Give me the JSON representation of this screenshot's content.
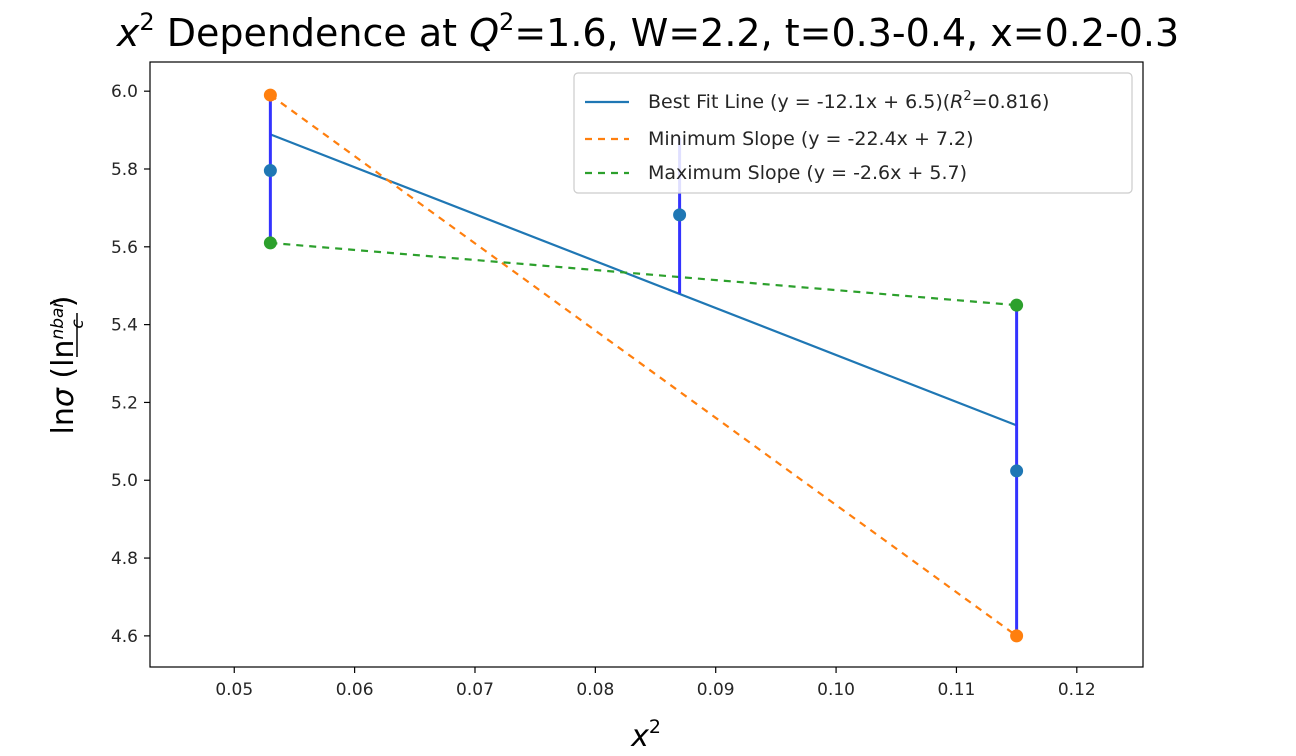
{
  "chart_data": {
    "type": "line",
    "title": {
      "lead_math": "x",
      "lead_sup": "2",
      "middle": " Dependence at ",
      "q_math": "Q",
      "q_sup": "2",
      "tail": "=1.6, W=2.2, t=0.3-0.4, x=0.2-0.3"
    },
    "xlabel": {
      "math": "x",
      "sup": "2"
    },
    "ylabel": {
      "lead": "ln",
      "sigma": "σ",
      "paren_open": " (ln",
      "numerator": "nbar",
      "denominator": "c",
      "paren_close": ")"
    },
    "xlim": [
      0.043,
      0.1255
    ],
    "ylim": [
      4.52,
      6.075
    ],
    "xticks": [
      0.05,
      0.06,
      0.07,
      0.08,
      0.09,
      0.1,
      0.11,
      0.12
    ],
    "xtick_labels": [
      "0.05",
      "0.06",
      "0.07",
      "0.08",
      "0.09",
      "0.10",
      "0.11",
      "0.12"
    ],
    "yticks": [
      4.6,
      4.8,
      5.0,
      5.2,
      5.4,
      5.6,
      5.8,
      6.0
    ],
    "ytick_labels": [
      "4.6",
      "4.8",
      "5.0",
      "5.2",
      "5.4",
      "5.6",
      "5.8",
      "6.0"
    ],
    "colors": {
      "best_fit": "#1f77b4",
      "min_slope": "#ff7f0e",
      "max_slope": "#2ca02c",
      "error_bar": "#3333ff",
      "axis": "#000000"
    },
    "data_points": {
      "x": [
        0.053,
        0.087,
        0.115
      ],
      "y": [
        5.796,
        5.682,
        5.024
      ],
      "err_low": [
        5.61,
        5.48,
        4.6
      ],
      "err_high": [
        5.99,
        5.88,
        5.45
      ]
    },
    "series": [
      {
        "name": "Best Fit Line (y = -12.1x + 6.5)(",
        "name_math": "R",
        "name_sup": "2",
        "name_tail": "=0.816)",
        "style": "solid",
        "color_key": "best_fit",
        "x": [
          0.053,
          0.115
        ],
        "y": [
          5.889,
          5.141
        ]
      },
      {
        "name": "Minimum Slope (y = -22.4x + 7.2)",
        "style": "dashed",
        "color_key": "min_slope",
        "x": [
          0.053,
          0.115
        ],
        "y": [
          5.99,
          4.6
        ],
        "marker_x": [
          0.053,
          0.115
        ],
        "marker_y": [
          5.99,
          4.6
        ]
      },
      {
        "name": "Maximum Slope (y = -2.6x + 5.7)",
        "style": "dashed",
        "color_key": "max_slope",
        "x": [
          0.053,
          0.115
        ],
        "y": [
          5.61,
          5.45
        ],
        "marker_x": [
          0.053,
          0.115
        ],
        "marker_y": [
          5.61,
          5.45
        ]
      }
    ],
    "legend_position": "upper right",
    "grid": false
  }
}
